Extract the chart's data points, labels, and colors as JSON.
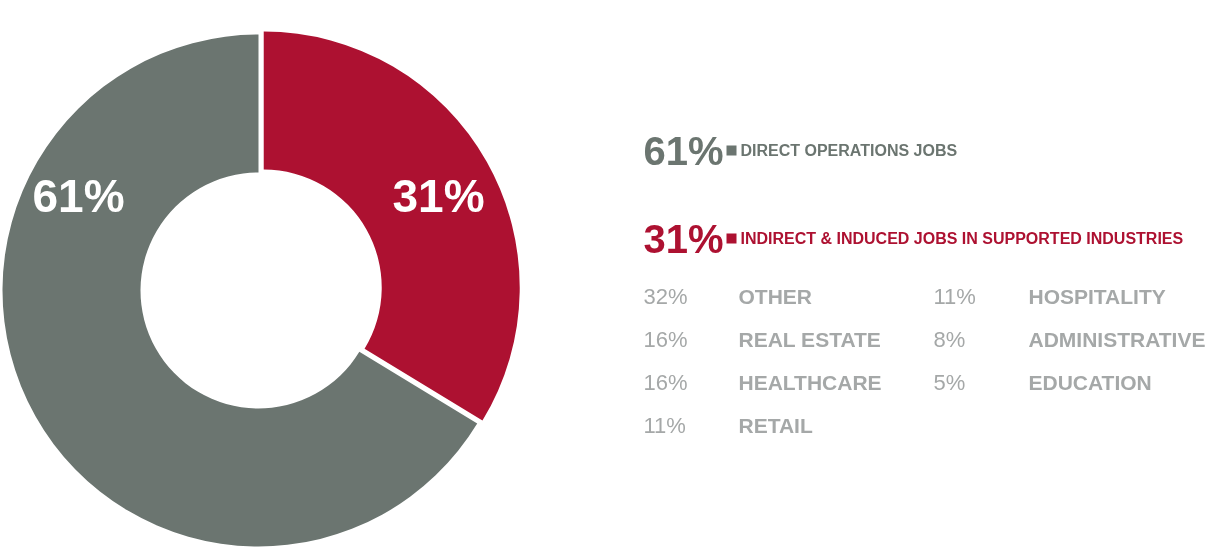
{
  "chart_data": {
    "type": "donut",
    "categories": [
      "DIRECT OPERATIONS JOBS",
      "INDIRECT & INDUCED JOBS IN SUPPORTED INDUSTRIES"
    ],
    "values": [
      61,
      31
    ],
    "colors": [
      "#6b7570",
      "#ad1131"
    ],
    "value_labels": [
      "61%",
      "31%"
    ],
    "data_labels": true,
    "legend": "right",
    "annotations": [
      "32%",
      "OTHER",
      "16%",
      "REAL ESTATE",
      "16%",
      "HEALTHCARE",
      "11%",
      "RETAIL",
      "11%",
      "HOSPITALITY",
      "8%",
      "ADMINISTRATIVE",
      "5%",
      "EDUCATION"
    ]
  }
}
